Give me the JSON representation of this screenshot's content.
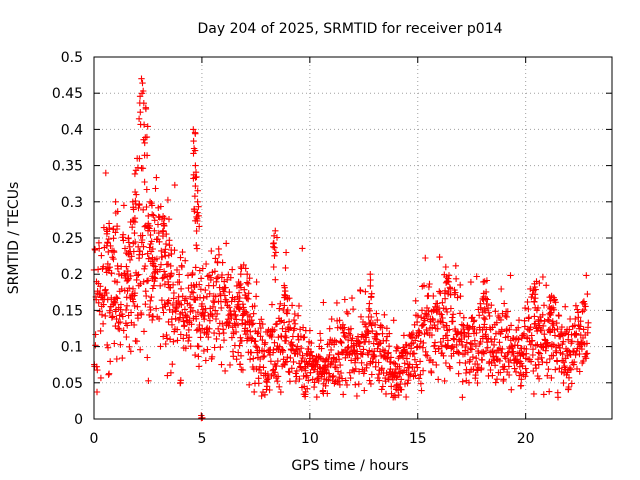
{
  "chart_data": {
    "type": "scatter",
    "title": "Day 204 of 2025, SRMTID for receiver p014",
    "xlabel": "GPS time / hours",
    "ylabel": "SRMTID / TECUs",
    "xlim": [
      0,
      24
    ],
    "ylim": [
      0,
      0.5
    ],
    "xticks": [
      0,
      5,
      10,
      15,
      20
    ],
    "xtick_labels": [
      "0",
      "5",
      "10",
      "15",
      "20"
    ],
    "yticks": [
      0,
      0.05,
      0.1,
      0.15,
      0.2,
      0.25,
      0.3,
      0.35,
      0.4,
      0.45,
      0.5
    ],
    "ytick_labels": [
      "0",
      "0.05",
      "0.1",
      "0.15",
      "0.2",
      "0.25",
      "0.3",
      "0.35",
      "0.4",
      "0.45",
      "0.5"
    ],
    "grid": true,
    "marker": "+",
    "color": "#ff0000",
    "series": [
      {
        "name": "SRMTID",
        "x_range": [
          0,
          22.9
        ],
        "mean_curve": [
          [
            0.0,
            0.15
          ],
          [
            0.3,
            0.16
          ],
          [
            0.6,
            0.18
          ],
          [
            1.0,
            0.15
          ],
          [
            1.5,
            0.18
          ],
          [
            2.0,
            0.2
          ],
          [
            2.5,
            0.21
          ],
          [
            3.0,
            0.2
          ],
          [
            3.5,
            0.17
          ],
          [
            4.0,
            0.15
          ],
          [
            4.5,
            0.15
          ],
          [
            5.0,
            0.15
          ],
          [
            5.5,
            0.15
          ],
          [
            6.0,
            0.16
          ],
          [
            6.5,
            0.14
          ],
          [
            7.0,
            0.13
          ],
          [
            7.5,
            0.11
          ],
          [
            8.0,
            0.08
          ],
          [
            8.5,
            0.1
          ],
          [
            9.0,
            0.11
          ],
          [
            9.5,
            0.09
          ],
          [
            10.0,
            0.07
          ],
          [
            10.5,
            0.07
          ],
          [
            11.0,
            0.08
          ],
          [
            11.5,
            0.09
          ],
          [
            12.0,
            0.1
          ],
          [
            12.5,
            0.1
          ],
          [
            13.0,
            0.1
          ],
          [
            13.5,
            0.08
          ],
          [
            14.0,
            0.07
          ],
          [
            14.5,
            0.08
          ],
          [
            15.0,
            0.1
          ],
          [
            15.5,
            0.12
          ],
          [
            16.0,
            0.13
          ],
          [
            16.5,
            0.13
          ],
          [
            17.0,
            0.11
          ],
          [
            17.5,
            0.1
          ],
          [
            18.0,
            0.11
          ],
          [
            18.5,
            0.11
          ],
          [
            19.0,
            0.1
          ],
          [
            19.5,
            0.09
          ],
          [
            20.0,
            0.1
          ],
          [
            20.5,
            0.12
          ],
          [
            21.0,
            0.11
          ],
          [
            21.5,
            0.1
          ],
          [
            22.0,
            0.1
          ],
          [
            22.5,
            0.11
          ],
          [
            22.9,
            0.12
          ]
        ],
        "peaks": [
          [
            0.7,
            0.27
          ],
          [
            1.0,
            0.3
          ],
          [
            1.6,
            0.25
          ],
          [
            1.8,
            0.3
          ],
          [
            2.0,
            0.36
          ],
          [
            2.2,
            0.47
          ],
          [
            2.4,
            0.43
          ],
          [
            2.6,
            0.3
          ],
          [
            2.8,
            0.26
          ],
          [
            3.2,
            0.28
          ],
          [
            3.5,
            0.24
          ],
          [
            4.6,
            0.4
          ],
          [
            4.7,
            0.35
          ],
          [
            4.8,
            0.3
          ],
          [
            6.8,
            0.21
          ],
          [
            7.1,
            0.2
          ],
          [
            8.4,
            0.26
          ],
          [
            8.9,
            0.23
          ],
          [
            12.8,
            0.2
          ],
          [
            16.3,
            0.21
          ],
          [
            18.1,
            0.19
          ],
          [
            20.5,
            0.19
          ],
          [
            21.2,
            0.17
          ]
        ],
        "dips": [
          [
            4.0,
            0.045
          ],
          [
            5.0,
            0.0
          ],
          [
            9.8,
            0.03
          ],
          [
            10.6,
            0.035
          ],
          [
            14.0,
            0.04
          ],
          [
            19.8,
            0.045
          ],
          [
            22.0,
            0.04
          ]
        ]
      }
    ]
  }
}
